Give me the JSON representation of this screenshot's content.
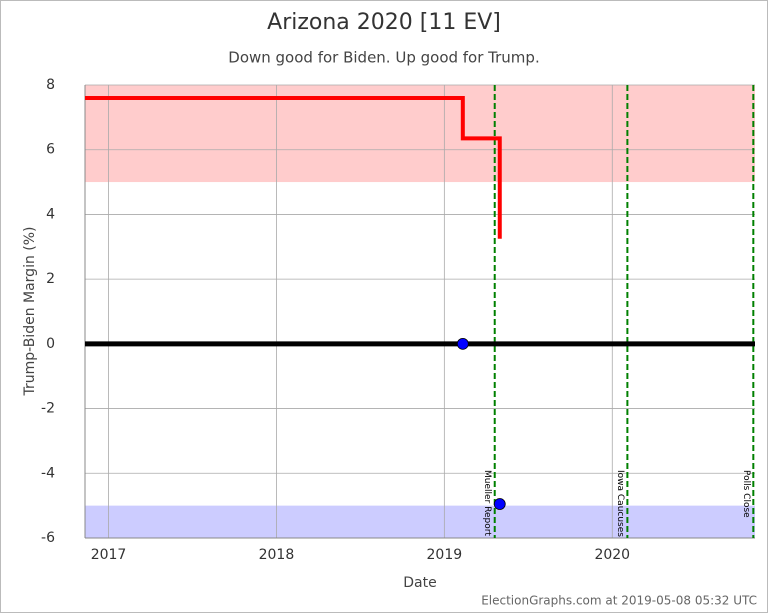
{
  "chart_data": {
    "type": "line",
    "title": "Arizona 2020 [11 EV]",
    "subtitle": "Down good for Biden. Up good for Trump.",
    "x_label": "Date",
    "y_label": "Trump-Biden Margin (%)",
    "footer": "ElectionGraphs.com at 2019-05-08 05:32 UTC",
    "xlim": [
      2016.86,
      2020.85
    ],
    "xticks": [
      2017,
      2018,
      2019,
      2020
    ],
    "ylim": [
      -6,
      8
    ],
    "yticks": [
      -6,
      -4,
      -2,
      0,
      2,
      4,
      6,
      8
    ],
    "grid": true,
    "bands": [
      {
        "from": 5,
        "to": 8,
        "color": "#ffcccc"
      },
      {
        "from": -6,
        "to": -5,
        "color": "#ccccff"
      }
    ],
    "events": [
      {
        "x": 2019.3,
        "label": "Mueller Report"
      },
      {
        "x": 2020.09,
        "label": "Iowa Caucuses"
      },
      {
        "x": 2020.84,
        "label": "Polls Close"
      }
    ],
    "event_color": "#008000",
    "series": [
      {
        "color": "#000000",
        "width": 5,
        "x": [
          2016.86,
          2020.85
        ],
        "values": [
          0,
          0
        ]
      },
      {
        "color": "#ff0000",
        "width": 4,
        "x": [
          2016.86,
          2019.11,
          2019.11,
          2019.33,
          2019.33
        ],
        "values": [
          7.6,
          7.6,
          6.35,
          6.35,
          3.25
        ]
      },
      {
        "color": "#0000ff",
        "marker": true,
        "x": [
          2019.11,
          2019.33
        ],
        "values": [
          0,
          -4.95
        ]
      }
    ]
  }
}
